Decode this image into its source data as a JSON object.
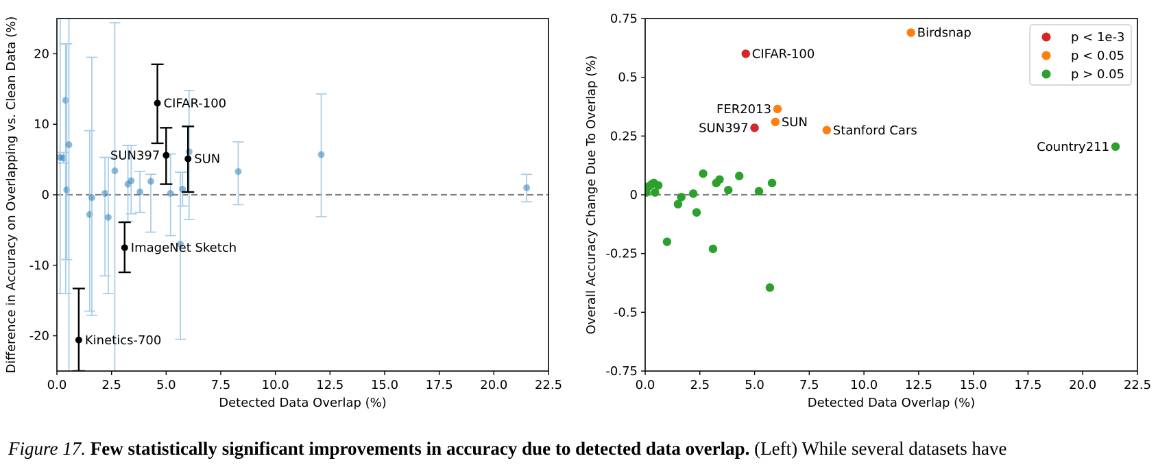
{
  "chart_data": [
    {
      "type": "scatter",
      "title": "",
      "xlabel": "Detected Data Overlap (%)",
      "ylabel": "Difference in Accuracy on Overlapping vs. Clean Data (%)",
      "xlim": [
        0,
        22.5
      ],
      "ylim": [
        -25,
        25
      ],
      "xticks": [
        0,
        2.5,
        5,
        7.5,
        10,
        12.5,
        15,
        17.5,
        20,
        22.5
      ],
      "xtick_labels": [
        "0.0",
        "2.5",
        "5.0",
        "7.5",
        "10.0",
        "12.5",
        "15.0",
        "17.5",
        "20.0",
        "22.5"
      ],
      "yticks": [
        -20,
        -10,
        0,
        10,
        20
      ],
      "ytick_labels": [
        "-20",
        "-10",
        "0",
        "10",
        "20"
      ],
      "grid": false,
      "reference_line": {
        "y": 0,
        "style": "dashed",
        "color": "#808080"
      },
      "series": [
        {
          "color": "#1f77b4",
          "ecolor": "#a9cde8",
          "points": [
            {
              "x": 0.15,
              "y": 5.3,
              "lo": -14,
              "hi": 25
            },
            {
              "x": 0.3,
              "y": 5.2,
              "lo": 4.5,
              "hi": 6
            },
            {
              "x": 0.4,
              "y": 13.4,
              "lo": -14,
              "hi": 21.4
            },
            {
              "x": 0.45,
              "y": 0.7,
              "lo": -9.2,
              "hi": 21.4
            },
            {
              "x": 0.55,
              "y": 7.1,
              "lo": -25,
              "hi": 25
            },
            {
              "x": 1.5,
              "y": -2.8,
              "lo": -16.5,
              "hi": 9.1
            },
            {
              "x": 1.6,
              "y": -0.4,
              "lo": -17.1,
              "hi": 19.5
            },
            {
              "x": 2.2,
              "y": 0.2,
              "lo": -11.5,
              "hi": 5.3
            },
            {
              "x": 2.35,
              "y": -3.2,
              "lo": -14,
              "hi": 5.3
            },
            {
              "x": 2.65,
              "y": 3.4,
              "lo": -25,
              "hi": 24.4
            },
            {
              "x": 3.25,
              "y": 1.5,
              "lo": -3.8,
              "hi": 7
            },
            {
              "x": 3.4,
              "y": 2,
              "lo": -2.7,
              "hi": 7
            },
            {
              "x": 3.8,
              "y": 0.4,
              "lo": -2.5,
              "hi": 3.3
            },
            {
              "x": 4.3,
              "y": 1.9,
              "lo": -5.3,
              "hi": 2.9
            },
            {
              "x": 5.2,
              "y": 0.2,
              "lo": -5.8,
              "hi": 5.8
            },
            {
              "x": 5.65,
              "y": -7,
              "lo": -20.5,
              "hi": 3.2
            },
            {
              "x": 5.75,
              "y": 0.8,
              "lo": -1.6,
              "hi": 3.2
            },
            {
              "x": 6.05,
              "y": 6.1,
              "lo": -3.5,
              "hi": 14.8
            },
            {
              "x": 8.3,
              "y": 3.3,
              "lo": -1.4,
              "hi": 7.5
            },
            {
              "x": 12.1,
              "y": 5.7,
              "lo": -3.1,
              "hi": 14.3
            },
            {
              "x": 21.5,
              "y": 1,
              "lo": -1,
              "hi": 2.9
            }
          ]
        },
        {
          "color": "#000000",
          "ecolor": "#000000",
          "points": [
            {
              "x": 4.6,
              "y": 13,
              "lo": 7.3,
              "hi": 18.5,
              "label": "CIFAR-100",
              "anchor": "right"
            },
            {
              "x": 5.0,
              "y": 5.6,
              "lo": 1.5,
              "hi": 9.5,
              "label": "SUN397",
              "anchor": "left"
            },
            {
              "x": 6.0,
              "y": 5.1,
              "lo": 0.4,
              "hi": 9.7,
              "label": "SUN",
              "anchor": "right"
            },
            {
              "x": 3.1,
              "y": -7.5,
              "lo": -11,
              "hi": -3.9,
              "label": "ImageNet Sketch",
              "anchor": "right"
            },
            {
              "x": 1.0,
              "y": -20.6,
              "lo": -25,
              "hi": -13.3,
              "label": "Kinetics-700",
              "anchor": "right"
            }
          ]
        }
      ]
    },
    {
      "type": "scatter",
      "title": "",
      "xlabel": "Detected Data Overlap (%)",
      "ylabel": "Overall Accuracy Change Due To Overlap (%)",
      "xlim": [
        0,
        22.5
      ],
      "ylim": [
        -0.75,
        0.75
      ],
      "xticks": [
        0,
        2.5,
        5,
        7.5,
        10,
        12.5,
        15,
        17.5,
        20,
        22.5
      ],
      "xtick_labels": [
        "0.0",
        "2.5",
        "5.0",
        "7.5",
        "10.0",
        "12.5",
        "15.0",
        "17.5",
        "20.0",
        "22.5"
      ],
      "yticks": [
        -0.75,
        -0.5,
        -0.25,
        0,
        0.25,
        0.5,
        0.75
      ],
      "ytick_labels": [
        "-0.75",
        "-0.5",
        "-0.25",
        "0",
        "0.25",
        "0.5",
        "0.75"
      ],
      "grid": false,
      "reference_line": {
        "y": 0,
        "style": "dashed",
        "color": "#808080"
      },
      "legend": {
        "placement": "top-right",
        "entries": [
          {
            "label": "p < 1e-3",
            "color": "#d62728"
          },
          {
            "label": "p < 0.05",
            "color": "#ff7f0e"
          },
          {
            "label": "p > 0.05",
            "color": "#2ca02c"
          }
        ]
      },
      "series": [
        {
          "name": "p < 1e-3",
          "color": "#d62728",
          "points": [
            {
              "x": 4.6,
              "y": 0.6,
              "label": "CIFAR-100",
              "anchor": "right"
            },
            {
              "x": 5.0,
              "y": 0.285,
              "label": "SUN397",
              "anchor": "left"
            }
          ]
        },
        {
          "name": "p < 0.05",
          "color": "#ff7f0e",
          "points": [
            {
              "x": 12.15,
              "y": 0.69,
              "label": "Birdsnap",
              "anchor": "right"
            },
            {
              "x": 6.05,
              "y": 0.365,
              "label": "FER2013",
              "anchor": "left"
            },
            {
              "x": 5.95,
              "y": 0.31,
              "label": "SUN",
              "anchor": "right"
            },
            {
              "x": 8.3,
              "y": 0.275,
              "label": "Stanford Cars",
              "anchor": "right"
            }
          ]
        },
        {
          "name": "p > 0.05",
          "color": "#2ca02c",
          "points": [
            {
              "x": 21.5,
              "y": 0.205,
              "label": "Country211",
              "anchor": "left"
            },
            {
              "x": 0.05,
              "y": 0.01
            },
            {
              "x": 0.15,
              "y": 0.035
            },
            {
              "x": 0.3,
              "y": 0.045
            },
            {
              "x": 0.4,
              "y": 0.05
            },
            {
              "x": 0.45,
              "y": 0.01
            },
            {
              "x": 0.6,
              "y": 0.04
            },
            {
              "x": 1.0,
              "y": -0.2
            },
            {
              "x": 1.5,
              "y": -0.04
            },
            {
              "x": 1.65,
              "y": -0.01
            },
            {
              "x": 2.2,
              "y": 0.005
            },
            {
              "x": 2.35,
              "y": -0.075
            },
            {
              "x": 2.65,
              "y": 0.09
            },
            {
              "x": 3.1,
              "y": -0.23
            },
            {
              "x": 3.25,
              "y": 0.05
            },
            {
              "x": 3.4,
              "y": 0.065
            },
            {
              "x": 3.8,
              "y": 0.02
            },
            {
              "x": 4.3,
              "y": 0.08
            },
            {
              "x": 5.2,
              "y": 0.015
            },
            {
              "x": 5.7,
              "y": -0.395
            },
            {
              "x": 5.8,
              "y": 0.05
            }
          ]
        }
      ]
    }
  ],
  "caption": {
    "label": "Figure 17.",
    "bold": "Few statistically significant improvements in accuracy due to detected data overlap.",
    "rest": "(Left) While several datasets have"
  }
}
